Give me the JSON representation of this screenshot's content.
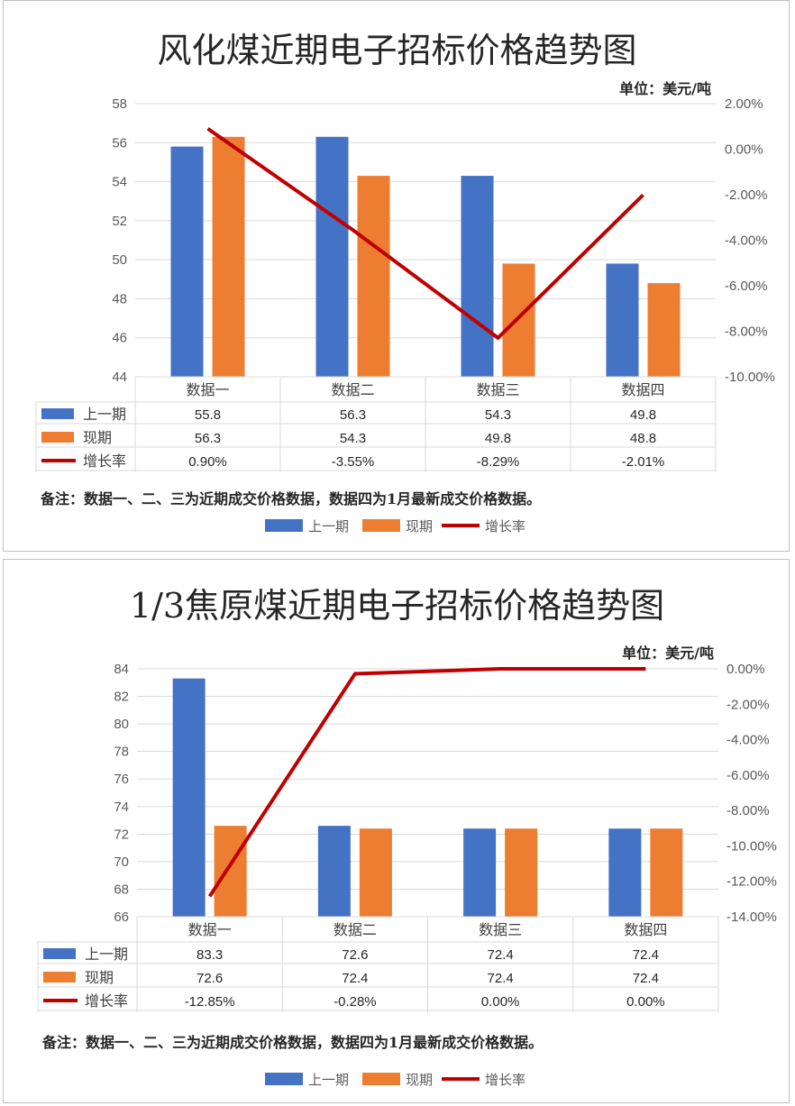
{
  "colors": {
    "prev": "#4472C4",
    "curr": "#ED7D31",
    "rate": "#C00000",
    "grid": "#D9D9D9"
  },
  "chart_data": [
    {
      "type": "bar",
      "title": "风化煤近期电子招标价格趋势图",
      "unit": "单位：美元/吨",
      "categories": [
        "数据一",
        "数据二",
        "数据三",
        "数据四"
      ],
      "ylim": [
        44,
        58
      ],
      "yticks": [
        "58",
        "56",
        "54",
        "52",
        "50",
        "48",
        "46",
        "44"
      ],
      "y2lim": [
        -10,
        2
      ],
      "y2ticks": [
        "2.00%",
        "0.00%",
        "-2.00%",
        "-4.00%",
        "-6.00%",
        "-8.00%",
        "-10.00%"
      ],
      "series": [
        {
          "name": "上一期",
          "kind": "bar",
          "values": [
            55.8,
            56.3,
            54.3,
            49.8
          ],
          "labels": [
            "55.8",
            "56.3",
            "54.3",
            "49.8"
          ]
        },
        {
          "name": "现期",
          "kind": "bar",
          "values": [
            56.3,
            54.3,
            49.8,
            48.8
          ],
          "labels": [
            "56.3",
            "54.3",
            "49.8",
            "48.8"
          ]
        },
        {
          "name": "增长率",
          "kind": "line",
          "axis": "secondary",
          "values": [
            0.9,
            -3.55,
            -8.29,
            -2.01
          ],
          "labels": [
            "0.90%",
            "-3.55%",
            "-8.29%",
            "-2.01%"
          ]
        }
      ],
      "note": "备注：数据一、二、三为近期成交价格数据，数据四为1月最新成交价格数据。",
      "grid": true,
      "legend": "bottom"
    },
    {
      "type": "bar",
      "title": "1/3焦原煤近期电子招标价格趋势图",
      "unit": "单位：美元/吨",
      "categories": [
        "数据一",
        "数据二",
        "数据三",
        "数据四"
      ],
      "ylim": [
        66,
        84
      ],
      "yticks": [
        "84",
        "82",
        "80",
        "78",
        "76",
        "74",
        "72",
        "70",
        "68",
        "66"
      ],
      "y2lim": [
        -14,
        0
      ],
      "y2ticks": [
        "0.00%",
        "-2.00%",
        "-4.00%",
        "-6.00%",
        "-8.00%",
        "-10.00%",
        "-12.00%",
        "-14.00%"
      ],
      "series": [
        {
          "name": "上一期",
          "kind": "bar",
          "values": [
            83.3,
            72.6,
            72.4,
            72.4
          ],
          "labels": [
            "83.3",
            "72.6",
            "72.4",
            "72.4"
          ]
        },
        {
          "name": "现期",
          "kind": "bar",
          "values": [
            72.6,
            72.4,
            72.4,
            72.4
          ],
          "labels": [
            "72.6",
            "72.4",
            "72.4",
            "72.4"
          ]
        },
        {
          "name": "增长率",
          "kind": "line",
          "axis": "secondary",
          "values": [
            -12.85,
            -0.28,
            0.0,
            0.0
          ],
          "labels": [
            "-12.85%",
            "-0.28%",
            "0.00%",
            "0.00%"
          ]
        }
      ],
      "note": "备注：数据一、二、三为近期成交价格数据，数据四为1月最新成交价格数据。",
      "grid": true,
      "legend": "bottom"
    }
  ]
}
